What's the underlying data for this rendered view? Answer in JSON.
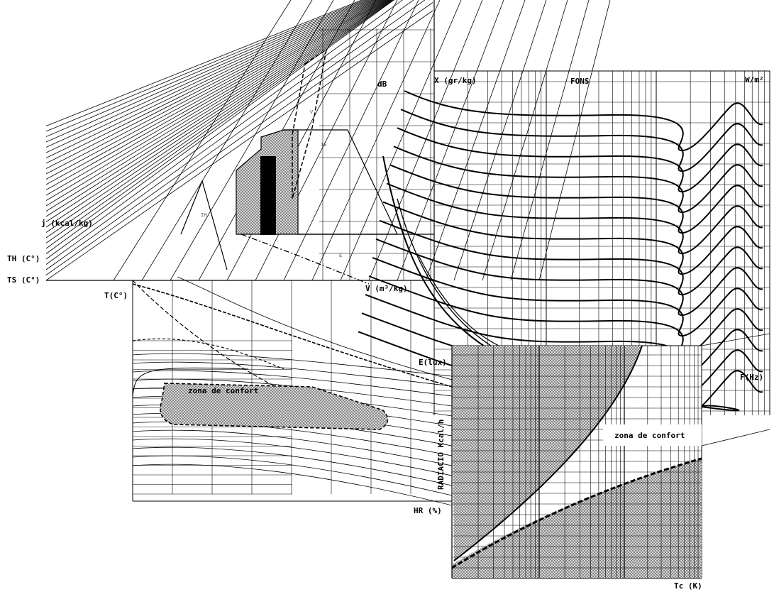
{
  "psychrometric": {
    "enthalpy_label": "j (kcal/kg)",
    "wet_bulb_label": "TH (C°)",
    "dry_bulb_label": "TS (C°)",
    "humidity_ratio_label": "X (gr/kg)",
    "specific_volume_label": "V (m³/kg)",
    "zone_labels": [
      "IH",
      "IE",
      "E",
      "V"
    ]
  },
  "acoustic": {
    "db_label": "dB",
    "phon_label": "FONS",
    "power_label": "W/m²",
    "frequency_label": "F(Hz)"
  },
  "lighting": {
    "temperature_label": "T(C°)",
    "illuminance_label": "E(lux)",
    "comfort_zone_label": "zona de confort",
    "relative_humidity_label": "HR (%)"
  },
  "radiation": {
    "axis_label": "RADIACIO Kcal/h",
    "comfort_zone_label": "zona de confort",
    "color_temp_label": "Tc (K)"
  },
  "colors": {
    "ink": "#000000",
    "hatch": "#8a8a8a",
    "paper": "#ffffff"
  }
}
